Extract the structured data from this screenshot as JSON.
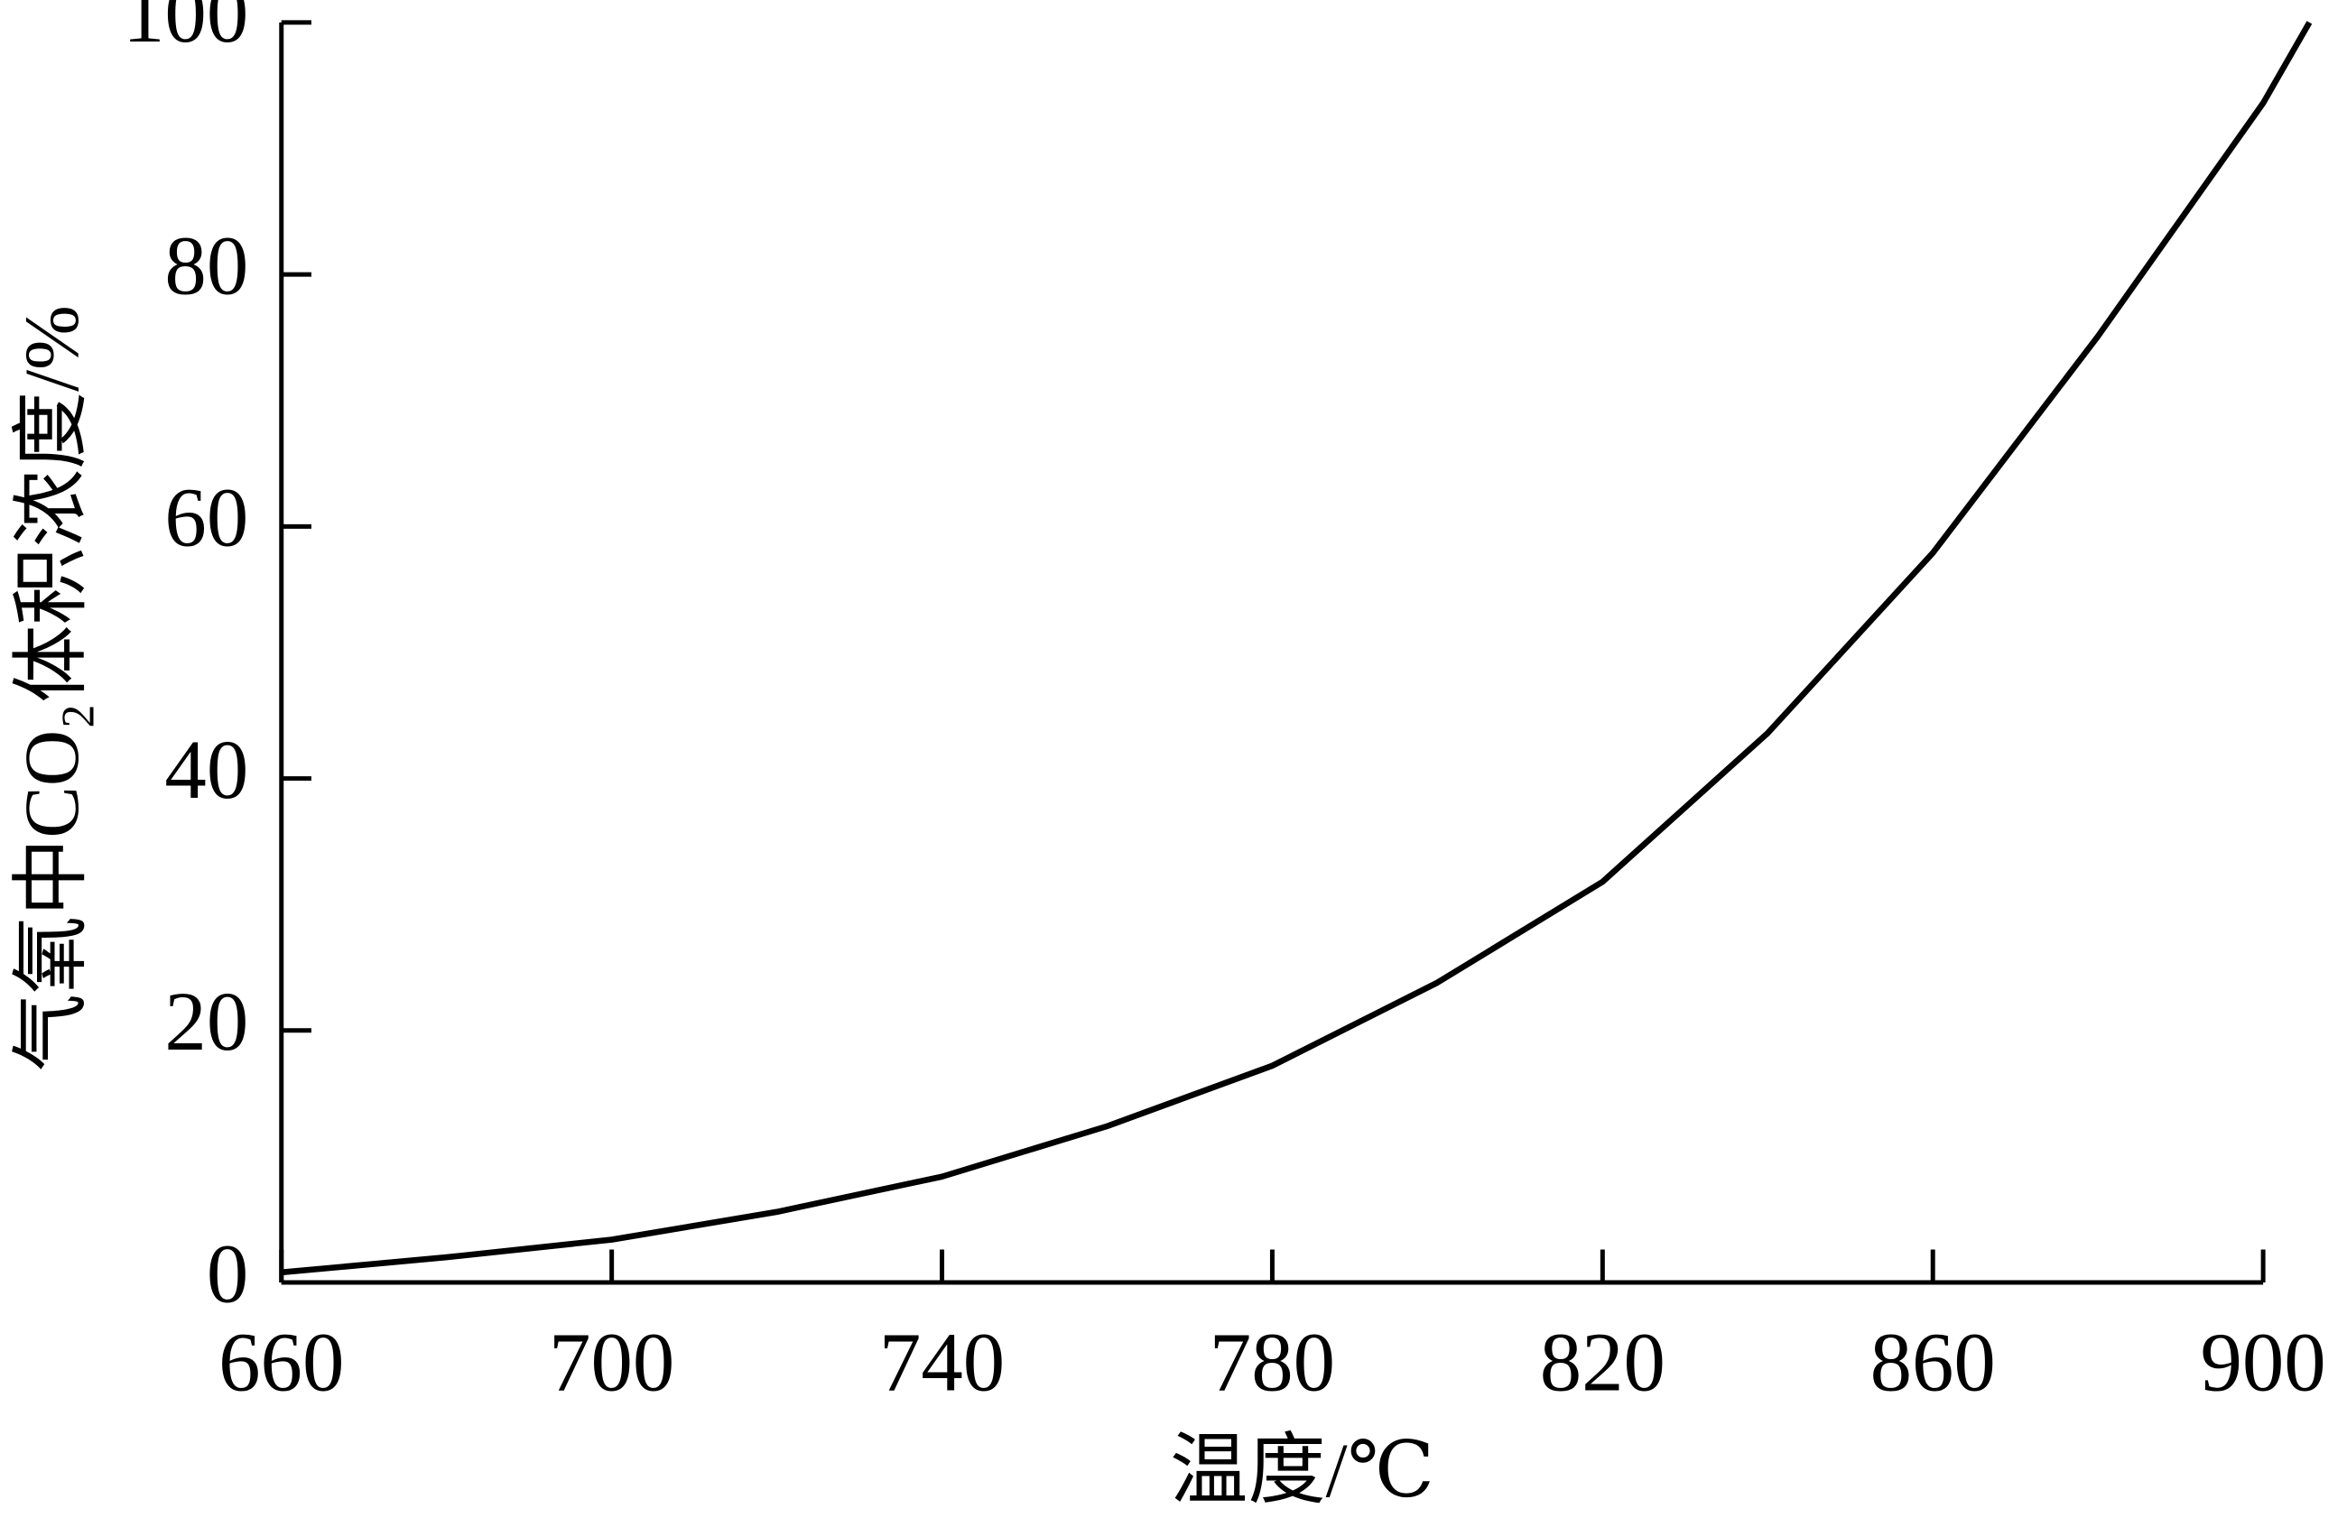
{
  "chart_data": {
    "type": "line",
    "x_label": "温度/℃",
    "y_label": "气氧中CO₂体积浓度/%",
    "x": [
      660,
      680,
      700,
      720,
      740,
      760,
      780,
      800,
      820,
      840,
      860,
      880,
      900,
      905.6
    ],
    "values": [
      0.8,
      2.0,
      3.4,
      5.6,
      8.4,
      12.4,
      17.2,
      23.8,
      31.8,
      43.6,
      57.9,
      75.1,
      93.6,
      100
    ],
    "color": "#000000",
    "xlim": [
      660,
      900
    ],
    "xticks": [
      660,
      700,
      740,
      780,
      820,
      860,
      900
    ],
    "ylim": [
      0,
      100
    ],
    "yticks": [
      0,
      20,
      40,
      60,
      80,
      100
    ],
    "grid": false
  }
}
